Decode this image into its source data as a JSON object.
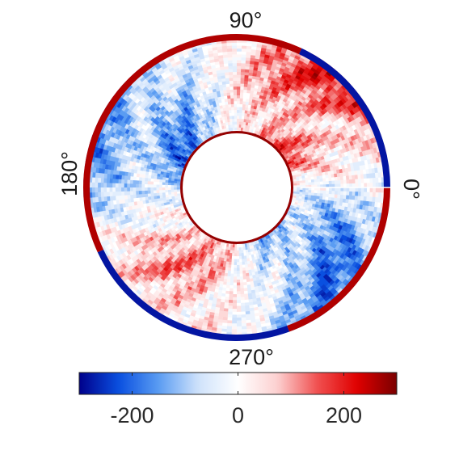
{
  "chart_data": {
    "type": "heatmap",
    "projection": "polar-annulus",
    "angle_labels": [
      "0°",
      "90°",
      "180°",
      "270°"
    ],
    "angle_directions_deg": [
      0,
      90,
      180,
      270
    ],
    "colorbar": {
      "orientation": "horizontal",
      "placement": "bottom",
      "range": [
        -300,
        300
      ],
      "ticks": [
        -200,
        0,
        200
      ],
      "tick_labels": [
        "-200",
        "0",
        "200"
      ],
      "colormap": [
        "#00008b",
        "#0a50e0",
        "#5a9cf2",
        "#cfe2fb",
        "#ffffff",
        "#fcd0d0",
        "#f05050",
        "#e00000",
        "#7a0000"
      ]
    },
    "field_pattern": {
      "description_free": true,
      "lobes": [
        {
          "center_deg": 45,
          "value": 200
        },
        {
          "center_deg": 150,
          "value": -200
        },
        {
          "center_deg": 240,
          "value": 150
        },
        {
          "center_deg": 320,
          "value": -220
        }
      ],
      "outer_edge": [
        {
          "from_deg": 0,
          "to_deg": 65,
          "value": -280
        },
        {
          "from_deg": 65,
          "to_deg": 205,
          "value": 260
        },
        {
          "from_deg": 205,
          "to_deg": 290,
          "value": -280
        },
        {
          "from_deg": 290,
          "to_deg": 360,
          "value": 260
        }
      ],
      "inner_edge_value": 280,
      "grid": false
    }
  }
}
